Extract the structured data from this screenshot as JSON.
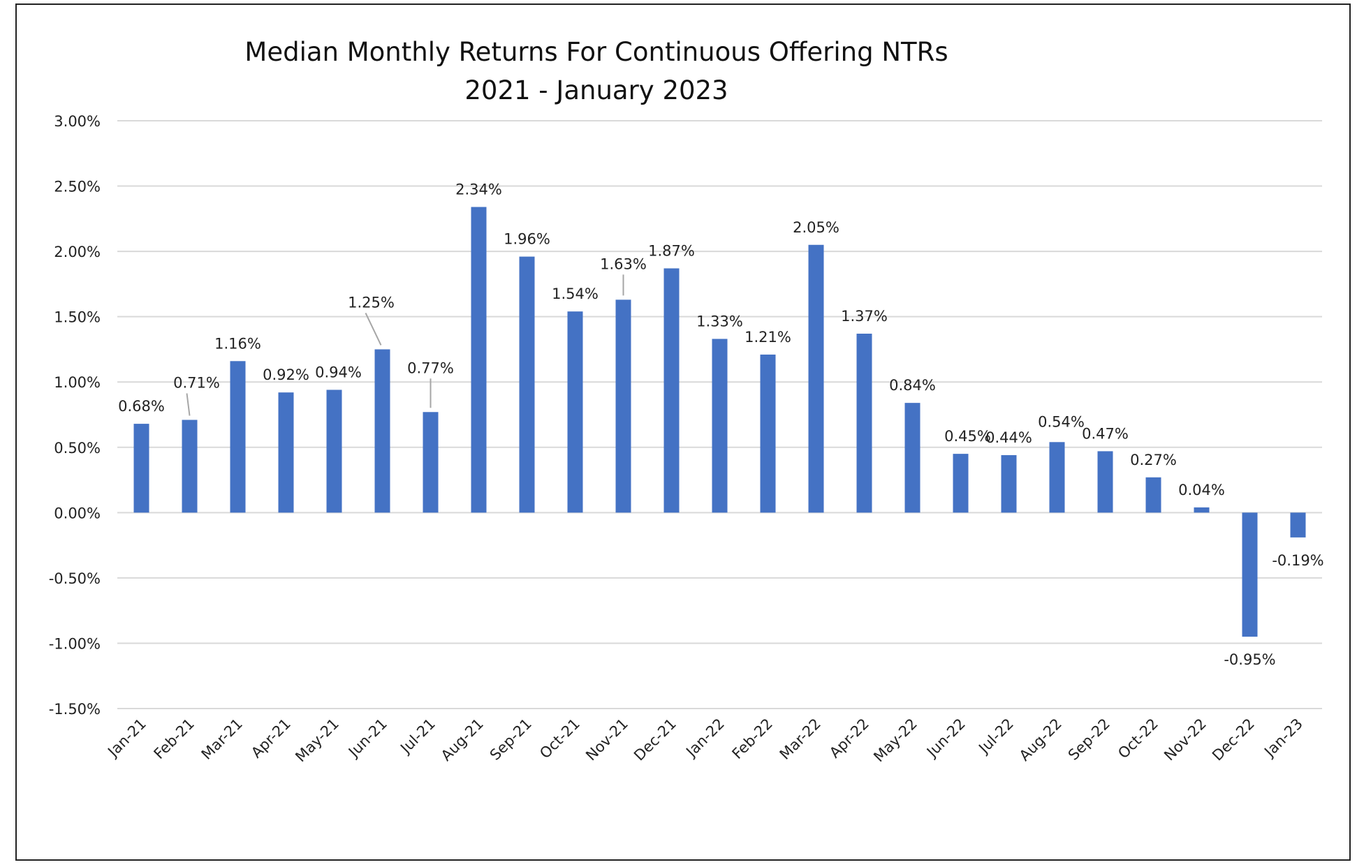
{
  "chart_data": {
    "type": "bar",
    "title_line1": "Median Monthly Returns For Continuous  Offering NTRs",
    "title_line2": "2021 - January 2023",
    "categories": [
      "Jan-21",
      "Feb-21",
      "Mar-21",
      "Apr-21",
      "May-21",
      "Jun-21",
      "Jul-21",
      "Aug-21",
      "Sep-21",
      "Oct-21",
      "Nov-21",
      "Dec-21",
      "Jan-22",
      "Feb-22",
      "Mar-22",
      "Apr-22",
      "May-22",
      "Jun-22",
      "Jul-22",
      "Aug-22",
      "Sep-22",
      "Oct-22",
      "Nov-22",
      "Dec-22",
      "Jan-23"
    ],
    "values": [
      0.68,
      0.71,
      1.16,
      0.92,
      0.94,
      1.25,
      0.77,
      2.34,
      1.96,
      1.54,
      1.63,
      1.87,
      1.33,
      1.21,
      2.05,
      1.37,
      0.84,
      0.45,
      0.44,
      0.54,
      0.47,
      0.27,
      0.04,
      -0.95,
      -0.19
    ],
    "data_labels": [
      "0.68%",
      "0.71%",
      "1.16%",
      "0.92%",
      "0.94%",
      "1.25%",
      "0.77%",
      "2.34%",
      "1.96%",
      "1.54%",
      "1.63%",
      "1.87%",
      "1.33%",
      "1.21%",
      "2.05%",
      "1.37%",
      "0.84%",
      "0.45%",
      "0.44%",
      "0.54%",
      "0.47%",
      "0.27%",
      "0.04%",
      "-0.95%",
      "-0.19%"
    ],
    "y_ticks": [
      "3.00%",
      "2.50%",
      "2.00%",
      "1.50%",
      "1.00%",
      "0.50%",
      "0.00%",
      "-0.50%",
      "-1.00%",
      "-1.50%"
    ],
    "ylim": [
      -1.5,
      3.0
    ],
    "ytick_step": 0.5,
    "grid": true,
    "legend": "none",
    "bar_color": "#4472c4",
    "gridline_color": "#d9d9d9",
    "leader_line_color": "#a6a6a6"
  }
}
